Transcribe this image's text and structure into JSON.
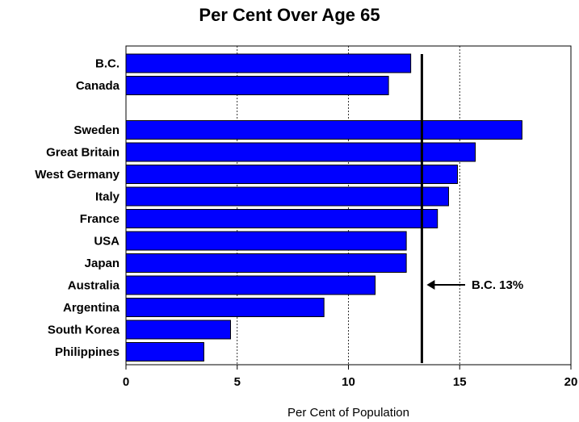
{
  "chart_data": {
    "type": "bar",
    "orientation": "horizontal",
    "title": "Per Cent Over Age 65",
    "xlabel": "Per Cent of Population",
    "ylabel": "",
    "xlim": [
      0,
      20
    ],
    "x_ticks": [
      0,
      5,
      10,
      15,
      20
    ],
    "grid": "vertical dashed lines",
    "bar_color": "#0000ff",
    "categories": [
      "B.C.",
      "Canada",
      "Sweden",
      "Great Britain",
      "West Germany",
      "Italy",
      "France",
      "USA",
      "Japan",
      "Australia",
      "Argentina",
      "South Korea",
      "Philippines"
    ],
    "values": [
      12.8,
      11.8,
      17.8,
      15.7,
      14.9,
      14.5,
      14.0,
      12.6,
      12.6,
      11.2,
      8.9,
      4.7,
      3.5
    ],
    "reference_line": {
      "value": 13.3,
      "label": "B.C. 13%"
    }
  }
}
